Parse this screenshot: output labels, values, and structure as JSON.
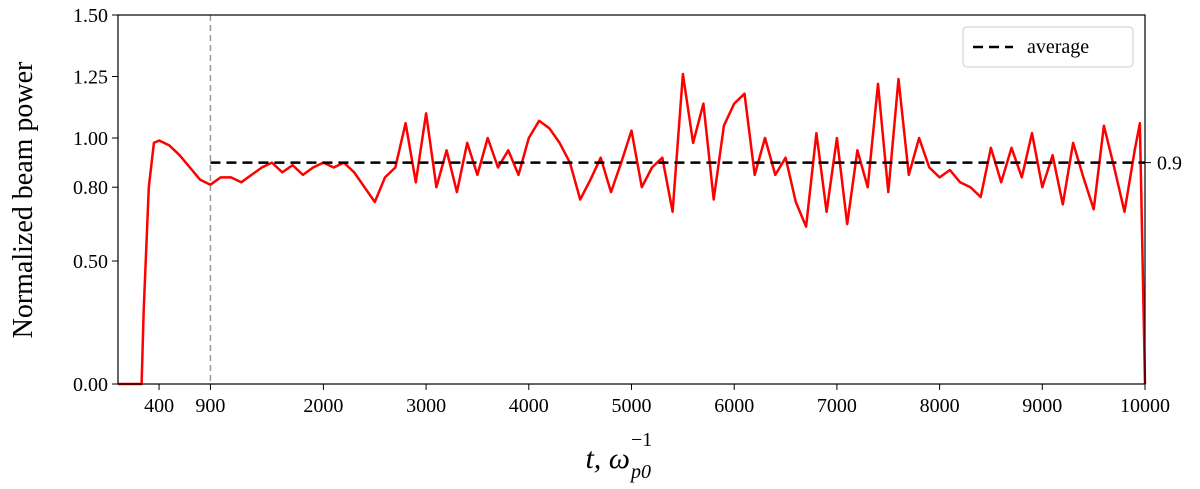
{
  "chart_data": {
    "type": "line",
    "ylabel": "Normalized beam power",
    "xlabel": {
      "main": "t, ω",
      "sub": "p0",
      "sup": "−1"
    },
    "xlim": [
      0,
      10000
    ],
    "ylim": [
      0,
      1.5
    ],
    "xticks": [
      400,
      900,
      2000,
      3000,
      4000,
      5000,
      6000,
      7000,
      8000,
      9000,
      10000
    ],
    "yticks": [
      {
        "value": 0,
        "label": "0.00"
      },
      {
        "value": 0.5,
        "label": "0.50"
      },
      {
        "value": 0.8,
        "label": "0.80"
      },
      {
        "value": 1.0,
        "label": "1.00"
      },
      {
        "value": 1.25,
        "label": "1.25"
      },
      {
        "value": 1.5,
        "label": "1.50"
      }
    ],
    "vline": 900,
    "average": {
      "name": "average",
      "value": 0.9,
      "start": 900,
      "end": 10000,
      "color": "#000000"
    },
    "legend": "upper right",
    "series": [
      {
        "color": "#ff0000",
        "x": [
          0,
          230,
          250,
          300,
          350,
          400,
          500,
          600,
          700,
          800,
          900,
          1000,
          1100,
          1200,
          1300,
          1400,
          1500,
          1600,
          1700,
          1800,
          1900,
          2000,
          2100,
          2200,
          2300,
          2400,
          2500,
          2600,
          2700,
          2800,
          2900,
          3000,
          3100,
          3200,
          3300,
          3400,
          3500,
          3600,
          3700,
          3800,
          3900,
          4000,
          4100,
          4200,
          4300,
          4400,
          4500,
          4600,
          4700,
          4800,
          4900,
          5000,
          5100,
          5200,
          5300,
          5400,
          5500,
          5600,
          5700,
          5800,
          5900,
          6000,
          6100,
          6200,
          6300,
          6400,
          6500,
          6600,
          6700,
          6800,
          6900,
          7000,
          7100,
          7200,
          7300,
          7400,
          7500,
          7600,
          7700,
          7800,
          7900,
          8000,
          8100,
          8200,
          8300,
          8400,
          8500,
          8600,
          8700,
          8800,
          8900,
          9000,
          9100,
          9200,
          9300,
          9400,
          9500,
          9600,
          9700,
          9800,
          9900,
          9950,
          10000
        ],
        "values": [
          0,
          0,
          0.3,
          0.8,
          0.98,
          0.99,
          0.97,
          0.93,
          0.88,
          0.83,
          0.81,
          0.84,
          0.84,
          0.82,
          0.85,
          0.88,
          0.9,
          0.86,
          0.89,
          0.85,
          0.88,
          0.9,
          0.88,
          0.9,
          0.86,
          0.8,
          0.74,
          0.84,
          0.88,
          1.06,
          0.82,
          1.1,
          0.8,
          0.95,
          0.78,
          0.98,
          0.85,
          1.0,
          0.88,
          0.95,
          0.85,
          1.0,
          1.07,
          1.04,
          0.98,
          0.9,
          0.75,
          0.83,
          0.92,
          0.78,
          0.9,
          1.03,
          0.8,
          0.88,
          0.92,
          0.7,
          1.26,
          0.98,
          1.14,
          0.75,
          1.05,
          1.14,
          1.18,
          0.85,
          1.0,
          0.85,
          0.92,
          0.74,
          0.64,
          1.02,
          0.7,
          1.0,
          0.65,
          0.95,
          0.8,
          1.22,
          0.78,
          1.24,
          0.85,
          1.0,
          0.88,
          0.84,
          0.87,
          0.82,
          0.8,
          0.76,
          0.96,
          0.82,
          0.96,
          0.84,
          1.02,
          0.8,
          0.93,
          0.73,
          0.98,
          0.84,
          0.71,
          1.05,
          0.88,
          0.7,
          0.95,
          1.06,
          0
        ]
      }
    ]
  }
}
